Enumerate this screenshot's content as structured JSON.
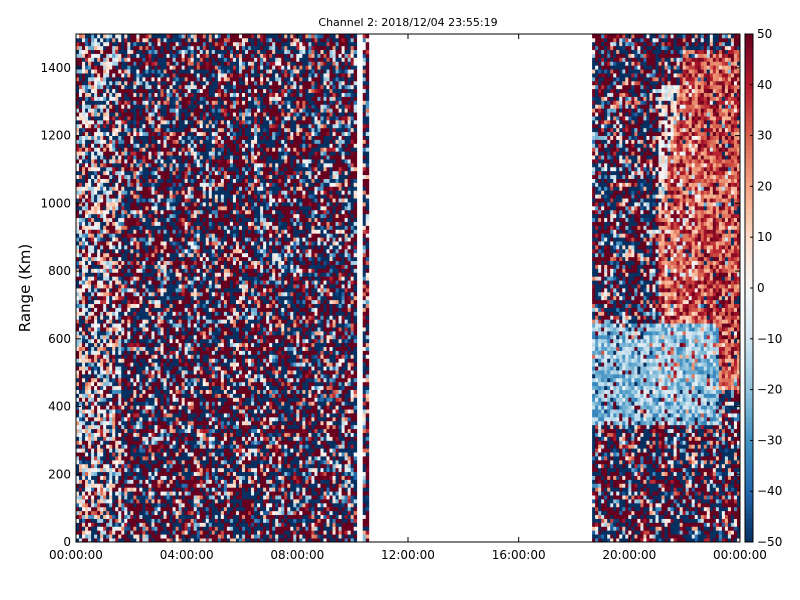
{
  "chart_data": {
    "type": "heatmap",
    "title": "Channel 2: 2018/12/04 23:55:19",
    "xlabel": "",
    "ylabel": "Range (Km)",
    "x_ticks": [
      "00:00:00",
      "04:00:00",
      "08:00:00",
      "12:00:00",
      "16:00:00",
      "20:00:00",
      "00:00:00"
    ],
    "x_range_hours": [
      0,
      24
    ],
    "y_ticks": [
      0,
      200,
      400,
      600,
      800,
      1000,
      1200,
      1400
    ],
    "ylim": [
      0,
      1500
    ],
    "colorbar": {
      "label": "",
      "min": -50,
      "max": 50,
      "ticks": [
        -50,
        -40,
        -30,
        -20,
        -10,
        0,
        10,
        20,
        30,
        40,
        50
      ],
      "tick_labels": [
        "−50",
        "−40",
        "−30",
        "−20",
        "−10",
        "0",
        "10",
        "20",
        "30",
        "40",
        "50"
      ],
      "colormap": [
        "#053061",
        "#2166ac",
        "#4393c3",
        "#92c5de",
        "#d1e5f0",
        "#f7f7f7",
        "#fddbc7",
        "#f4a582",
        "#d6604d",
        "#b2182b",
        "#67001f"
      ]
    },
    "data_gaps_hours": [
      [
        10.17,
        10.35
      ],
      [
        10.6,
        18.6
      ]
    ],
    "features": [
      {
        "region": "near-range noise",
        "x_hours": [
          0,
          10.2
        ],
        "y_km": [
          0,
          1500
        ],
        "value_range": [
          -50,
          50
        ]
      },
      {
        "region": "negative band",
        "x_hours": [
          18.6,
          23.0
        ],
        "y_km": [
          350,
          650
        ],
        "value_range": [
          -40,
          -5
        ]
      },
      {
        "region": "positive plume",
        "x_hours": [
          21.0,
          24.0
        ],
        "y_km": [
          450,
          1450
        ],
        "value_range": [
          15,
          50
        ]
      }
    ]
  }
}
